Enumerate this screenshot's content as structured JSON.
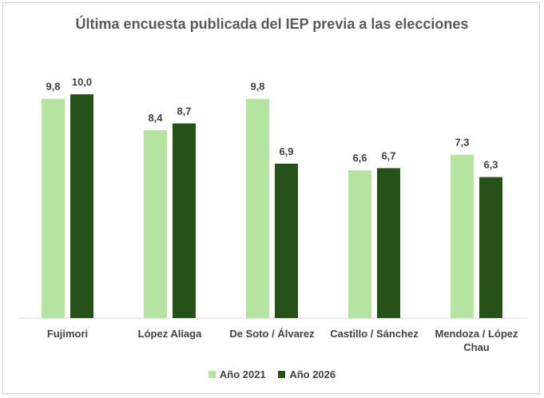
{
  "chart_data": {
    "type": "bar",
    "title": "Última encuesta publicada del IEP previa a las elecciones",
    "categories": [
      [
        "Fujimori"
      ],
      [
        "López Aliaga"
      ],
      [
        "De Soto / Álvarez"
      ],
      [
        "Castillo / Sánchez"
      ],
      [
        "Mendoza / López",
        "Chau"
      ]
    ],
    "series": [
      {
        "name": "Año 2021",
        "color": "#b5e4a1",
        "values": [
          9.8,
          8.4,
          9.8,
          6.6,
          7.3
        ],
        "labels": [
          "9,8",
          "8,4",
          "9,8",
          "6,6",
          "7,3"
        ]
      },
      {
        "name": "Año 2026",
        "color": "#265219",
        "values": [
          10.0,
          8.7,
          6.9,
          6.7,
          6.3
        ],
        "labels": [
          "10,0",
          "8,7",
          "6,9",
          "6,7",
          "6,3"
        ]
      }
    ],
    "ylim": [
      0,
      10
    ],
    "xlabel": "",
    "ylabel": "",
    "grid": false,
    "legend": "bottom"
  }
}
